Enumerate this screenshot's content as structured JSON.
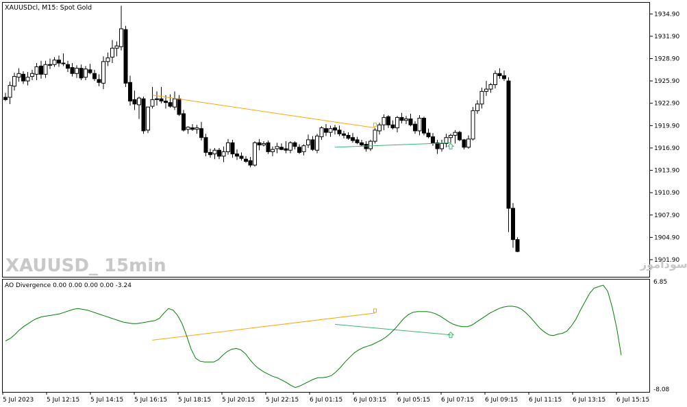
{
  "main_chart": {
    "title": "XAUUSDcl, M15:  Spot Gold",
    "watermark_left": "XAUUSD_ 15min",
    "watermark_right": "انتشار در سایت سودآموز",
    "price_labels": [
      "1934.90",
      "1931.90",
      "1928.90",
      "1925.90",
      "1922.90",
      "1919.90",
      "1916.90",
      "1913.90",
      "1910.90",
      "1907.90",
      "1904.90",
      "1901.90"
    ],
    "price_range": [
      1899.6,
      1936.4
    ],
    "candle_up_color": "#ffffff",
    "candle_down_color": "#000000",
    "bearish_divergence_color": "#ffa500",
    "bullish_divergence_color": "#3cb371",
    "candles": [
      [
        1923.7,
        1924.3,
        1923.2,
        1923.4
      ],
      [
        1923.7,
        1925.8,
        1922.8,
        1925.3
      ],
      [
        1925.2,
        1927.0,
        1924.6,
        1926.5
      ],
      [
        1926.4,
        1927.6,
        1925.8,
        1926.9
      ],
      [
        1926.8,
        1927.2,
        1925.5,
        1925.9
      ],
      [
        1925.9,
        1927.1,
        1925.3,
        1926.4
      ],
      [
        1926.5,
        1927.4,
        1926.0,
        1926.9
      ],
      [
        1926.8,
        1928.3,
        1926.0,
        1927.8
      ],
      [
        1927.9,
        1928.6,
        1926.2,
        1926.8
      ],
      [
        1926.8,
        1928.6,
        1926.3,
        1928.1
      ],
      [
        1928.1,
        1928.9,
        1927.5,
        1928.0
      ],
      [
        1928.1,
        1929.1,
        1927.8,
        1928.7
      ],
      [
        1928.7,
        1929.3,
        1927.8,
        1928.3
      ],
      [
        1928.3,
        1929.6,
        1927.9,
        1928.2
      ],
      [
        1928.1,
        1928.6,
        1927.1,
        1927.6
      ],
      [
        1927.7,
        1928.3,
        1926.5,
        1926.9
      ],
      [
        1926.9,
        1928.0,
        1926.3,
        1927.6
      ],
      [
        1927.6,
        1928.1,
        1926.0,
        1926.3
      ],
      [
        1926.4,
        1927.9,
        1926.0,
        1927.5
      ],
      [
        1927.4,
        1928.2,
        1926.8,
        1927.0
      ],
      [
        1926.9,
        1927.4,
        1925.9,
        1926.2
      ],
      [
        1926.1,
        1926.8,
        1925.2,
        1925.7
      ],
      [
        1925.6,
        1929.2,
        1924.8,
        1928.5
      ],
      [
        1928.5,
        1929.7,
        1927.9,
        1929.0
      ],
      [
        1929.1,
        1931.4,
        1928.3,
        1930.3
      ],
      [
        1930.3,
        1931.2,
        1929.2,
        1930.6
      ],
      [
        1930.5,
        1936.0,
        1930.0,
        1932.9
      ],
      [
        1932.8,
        1933.3,
        1925.1,
        1925.6
      ],
      [
        1925.7,
        1926.6,
        1922.6,
        1923.2
      ],
      [
        1923.4,
        1924.6,
        1922.0,
        1922.8
      ],
      [
        1922.7,
        1923.8,
        1920.8,
        1923.6
      ],
      [
        1923.5,
        1923.8,
        1918.8,
        1919.2
      ],
      [
        1919.3,
        1922.4,
        1918.9,
        1922.4
      ],
      [
        1922.5,
        1925.1,
        1922.2,
        1923.4
      ],
      [
        1923.5,
        1924.5,
        1922.6,
        1923.4
      ],
      [
        1923.5,
        1925.1,
        1922.9,
        1923.2
      ],
      [
        1923.2,
        1924.0,
        1922.2,
        1923.0
      ],
      [
        1923.0,
        1924.1,
        1922.3,
        1922.5
      ],
      [
        1922.4,
        1924.5,
        1922.0,
        1923.5
      ],
      [
        1923.5,
        1924.0,
        1921.2,
        1921.4
      ],
      [
        1921.5,
        1922.0,
        1919.1,
        1919.3
      ],
      [
        1919.4,
        1919.8,
        1918.8,
        1919.7
      ],
      [
        1919.6,
        1920.1,
        1919.2,
        1919.4
      ],
      [
        1919.4,
        1920.0,
        1918.8,
        1919.6
      ],
      [
        1919.5,
        1920.4,
        1917.9,
        1918.3
      ],
      [
        1918.3,
        1918.8,
        1915.8,
        1916.3
      ],
      [
        1916.3,
        1916.8,
        1915.6,
        1916.0
      ],
      [
        1916.1,
        1916.9,
        1915.4,
        1916.6
      ],
      [
        1916.6,
        1916.9,
        1915.4,
        1915.8
      ],
      [
        1915.8,
        1917.1,
        1915.0,
        1916.4
      ],
      [
        1916.4,
        1918.1,
        1916.0,
        1917.6
      ],
      [
        1917.6,
        1918.0,
        1915.6,
        1916.1
      ],
      [
        1916.1,
        1916.7,
        1915.3,
        1915.8
      ],
      [
        1915.8,
        1916.3,
        1915.2,
        1915.5
      ],
      [
        1915.4,
        1915.8,
        1914.9,
        1915.1
      ],
      [
        1915.2,
        1915.7,
        1914.3,
        1914.6
      ],
      [
        1914.6,
        1917.8,
        1914.4,
        1917.6
      ],
      [
        1917.6,
        1918.1,
        1916.6,
        1917.3
      ],
      [
        1917.3,
        1917.8,
        1917.1,
        1917.5
      ],
      [
        1917.6,
        1917.9,
        1916.1,
        1916.4
      ],
      [
        1916.4,
        1917.1,
        1915.8,
        1916.7
      ],
      [
        1916.8,
        1917.6,
        1916.2,
        1917.1
      ],
      [
        1917.0,
        1917.5,
        1916.6,
        1916.7
      ],
      [
        1916.8,
        1917.8,
        1916.2,
        1916.6
      ],
      [
        1916.6,
        1917.8,
        1916.2,
        1917.6
      ],
      [
        1917.6,
        1917.8,
        1916.7,
        1917.1
      ],
      [
        1917.0,
        1917.4,
        1916.1,
        1916.3
      ],
      [
        1916.4,
        1917.4,
        1915.9,
        1917.2
      ],
      [
        1917.3,
        1918.7,
        1916.9,
        1918.0
      ],
      [
        1918.0,
        1918.5,
        1916.5,
        1916.7
      ],
      [
        1916.6,
        1918.8,
        1916.2,
        1918.5
      ],
      [
        1918.4,
        1919.8,
        1918.0,
        1919.6
      ],
      [
        1919.5,
        1920.1,
        1918.5,
        1919.0
      ],
      [
        1919.0,
        1919.9,
        1918.4,
        1919.5
      ],
      [
        1919.6,
        1920.0,
        1918.7,
        1919.3
      ],
      [
        1919.3,
        1919.9,
        1918.5,
        1918.8
      ],
      [
        1918.8,
        1919.2,
        1918.2,
        1918.6
      ],
      [
        1918.6,
        1919.0,
        1918.0,
        1918.2
      ],
      [
        1918.3,
        1918.9,
        1917.6,
        1917.9
      ],
      [
        1918.0,
        1918.4,
        1917.4,
        1917.6
      ],
      [
        1917.6,
        1918.0,
        1917.1,
        1917.3
      ],
      [
        1917.4,
        1917.8,
        1916.4,
        1916.8
      ],
      [
        1916.8,
        1918.0,
        1916.5,
        1917.8
      ],
      [
        1917.8,
        1919.6,
        1917.5,
        1919.3
      ],
      [
        1919.2,
        1920.3,
        1918.7,
        1920.0
      ],
      [
        1920.0,
        1921.4,
        1919.3,
        1921.0
      ],
      [
        1921.1,
        1921.3,
        1919.6,
        1920.0
      ],
      [
        1920.0,
        1920.6,
        1919.4,
        1919.6
      ],
      [
        1919.6,
        1921.2,
        1919.0,
        1921.0
      ],
      [
        1921.0,
        1921.6,
        1920.2,
        1920.6
      ],
      [
        1920.6,
        1921.2,
        1920.1,
        1920.8
      ],
      [
        1920.8,
        1921.5,
        1919.8,
        1920.0
      ],
      [
        1920.1,
        1920.5,
        1918.8,
        1919.2
      ],
      [
        1919.2,
        1921.3,
        1918.6,
        1920.9
      ],
      [
        1920.9,
        1921.1,
        1918.6,
        1918.9
      ],
      [
        1918.9,
        1919.5,
        1918.2,
        1918.4
      ],
      [
        1918.4,
        1918.9,
        1917.2,
        1917.6
      ],
      [
        1917.6,
        1918.0,
        1916.1,
        1916.8
      ],
      [
        1916.8,
        1918.0,
        1916.4,
        1917.5
      ],
      [
        1917.5,
        1918.8,
        1917.0,
        1918.3
      ],
      [
        1918.3,
        1918.8,
        1917.6,
        1918.6
      ],
      [
        1918.6,
        1919.3,
        1917.5,
        1919.0
      ],
      [
        1919.0,
        1919.2,
        1917.8,
        1918.0
      ],
      [
        1918.0,
        1918.1,
        1916.7,
        1917.0
      ],
      [
        1917.0,
        1918.6,
        1916.8,
        1918.1
      ],
      [
        1918.1,
        1922.4,
        1917.9,
        1921.9
      ],
      [
        1921.9,
        1923.3,
        1921.5,
        1922.8
      ],
      [
        1922.8,
        1925.0,
        1922.2,
        1924.5
      ],
      [
        1924.5,
        1925.9,
        1923.9,
        1924.8
      ],
      [
        1924.8,
        1925.6,
        1924.3,
        1925.4
      ],
      [
        1925.4,
        1927.3,
        1924.9,
        1926.9
      ],
      [
        1926.9,
        1927.6,
        1926.2,
        1926.6
      ],
      [
        1926.6,
        1927.3,
        1925.9,
        1926.2
      ],
      [
        1925.9,
        1926.4,
        1905.6,
        1908.8
      ],
      [
        1908.8,
        1909.5,
        1903.5,
        1904.6
      ],
      [
        1904.6,
        1904.9,
        1902.9,
        1903.0
      ]
    ]
  },
  "indicator": {
    "label": "AO Divergence 0.00 0.00 0.00 0.00 -3.24",
    "top_label": "6.85",
    "bottom_label": "-8.08",
    "range": [
      -8.08,
      6.85
    ],
    "line_color": "#008000",
    "values": [
      -1.3,
      -1.0,
      -0.5,
      0.1,
      0.6,
      1.0,
      1.4,
      1.7,
      1.9,
      2.0,
      2.1,
      2.2,
      2.3,
      2.5,
      2.7,
      2.9,
      3.0,
      2.9,
      2.8,
      2.6,
      2.4,
      2.2,
      2.0,
      1.8,
      1.6,
      1.4,
      1.2,
      1.1,
      1.0,
      1.0,
      1.1,
      1.2,
      1.3,
      1.4,
      1.7,
      2.4,
      3.0,
      2.8,
      2.1,
      1.0,
      -0.6,
      -2.4,
      -3.6,
      -4.0,
      -4.1,
      -4.1,
      -4.1,
      -3.8,
      -3.2,
      -2.7,
      -2.4,
      -2.3,
      -2.5,
      -3.0,
      -3.8,
      -4.5,
      -5.0,
      -5.4,
      -5.7,
      -6.0,
      -6.2,
      -6.5,
      -6.8,
      -7.2,
      -7.5,
      -7.3,
      -7.0,
      -6.7,
      -6.4,
      -6.2,
      -6.2,
      -6.1,
      -5.9,
      -5.4,
      -4.8,
      -4.1,
      -3.5,
      -2.9,
      -2.5,
      -2.2,
      -2.0,
      -1.8,
      -1.5,
      -1.2,
      -0.8,
      -0.3,
      0.3,
      1.0,
      1.7,
      2.2,
      2.5,
      2.6,
      2.6,
      2.6,
      2.5,
      2.3,
      2.0,
      1.6,
      1.2,
      0.9,
      0.7,
      0.6,
      0.6,
      0.8,
      1.2,
      1.6,
      2.0,
      2.4,
      2.7,
      3.0,
      3.2,
      3.3,
      3.3,
      3.2,
      2.9,
      2.4,
      1.8,
      1.1,
      0.4,
      -0.1,
      -0.5,
      -0.6,
      -0.4,
      -0.3,
      0.0,
      0.7,
      1.6,
      2.8,
      3.9,
      5.0,
      5.7,
      5.9,
      6.1,
      5.3,
      3.2,
      0.4,
      -3.2
    ]
  },
  "divergences": [
    {
      "type": "bearish",
      "price_from": 1924.0,
      "price_to": 1919.6,
      "ind_from": -1.2,
      "ind_to": 2.4,
      "bar_from": 33,
      "bar_to": 83
    },
    {
      "type": "bullish",
      "price_from": 1917.0,
      "price_to": 1917.6,
      "ind_from": 0.9,
      "ind_to": -0.5,
      "bar_from": 74,
      "bar_to": 100
    }
  ],
  "time_axis": [
    "5 Jul 2023",
    "5 Jul 12:15",
    "5 Jul 14:15",
    "5 Jul 16:15",
    "5 Jul 18:15",
    "5 Jul 20:15",
    "5 Jul 22:15",
    "6 Jul 01:15",
    "6 Jul 03:15",
    "6 Jul 05:15",
    "6 Jul 07:15",
    "6 Jul 09:15",
    "6 Jul 11:15",
    "6 Jul 13:15",
    "6 Jul 15:15"
  ]
}
